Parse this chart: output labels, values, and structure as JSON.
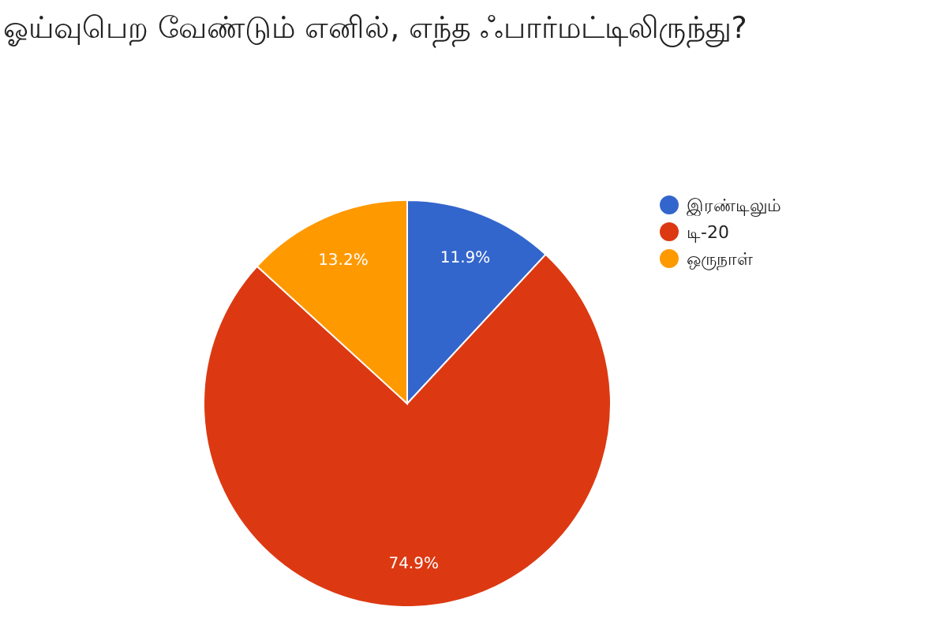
{
  "chart_data": {
    "type": "pie",
    "title": "ஓய்வுபெற வேண்டும் எனில், எந்த ஃபார்மட்டிலிருந்து?",
    "categories": [
      "இரண்டிலும்",
      "டி-20",
      "ஒருநாள்"
    ],
    "values": [
      11.9,
      74.9,
      13.2
    ],
    "colors": [
      "#3366cc",
      "#dc3912",
      "#ff9900"
    ],
    "value_labels": [
      "11.9%",
      "74.9%",
      "13.2%"
    ],
    "legend": "right"
  }
}
